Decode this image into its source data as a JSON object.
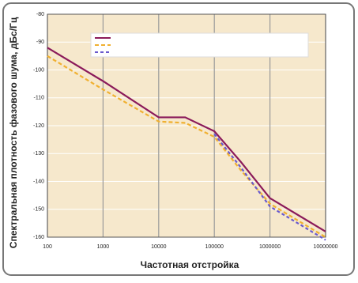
{
  "chart_data": {
    "type": "line",
    "xlabel": "Частотная отстройка",
    "ylabel": "Спектральная плотность фазового шума, дБс/Гц",
    "x": [
      100,
      1000,
      10000,
      30000,
      100000,
      300000,
      1000000,
      10000000
    ],
    "series": [
      {
        "color": "#8b1a5a",
        "values": [
          -92,
          -104,
          -117,
          -117,
          -122,
          -133,
          -146,
          -158
        ]
      },
      {
        "color": "#f0b030",
        "values": [
          -95,
          -107,
          -118.5,
          -119,
          -124,
          -136,
          -148,
          -160
        ]
      },
      {
        "color": "#6a5acd",
        "values": [
          null,
          null,
          null,
          null,
          -123,
          -135,
          -149,
          -161
        ]
      }
    ],
    "xlim": [
      100,
      10000000
    ],
    "xticks": [
      100,
      1000,
      10000,
      100000,
      1000000,
      10000000
    ],
    "xscale": "log",
    "ylim": [
      -160,
      -80
    ],
    "yticks": [
      -80,
      -90,
      -100,
      -110,
      -120,
      -130,
      -140,
      -150,
      -160
    ],
    "grid": true
  }
}
